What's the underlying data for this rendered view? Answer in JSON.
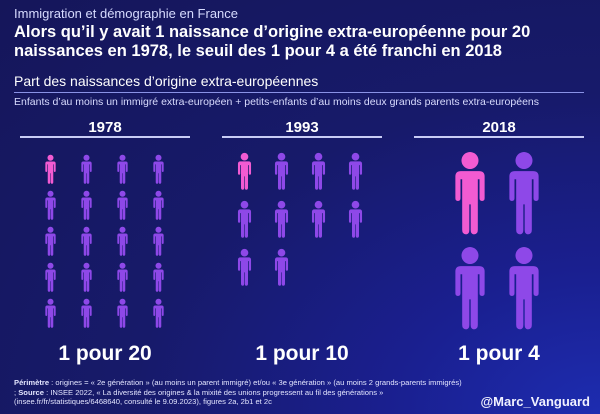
{
  "header": {
    "kicker": "Immigration et démographie en France",
    "title": "Alors qu’il y avait 1 naissance d’origine extra-européenne pour 20 naissances en 1978, le seuil des 1 pour 4 a été franchi en 2018",
    "subtitle": "Part des naissances d’origine extra-européennes",
    "caption": "Enfants d’au moins un immigré extra-européen + petits-enfants d’au moins deux grands parents extra-européens"
  },
  "chart_data": {
    "type": "pictogram",
    "categories": [
      "1978",
      "1993",
      "2018"
    ],
    "series": [
      {
        "values": [
          1,
          1,
          1
        ],
        "color": "#f25bd2"
      },
      {
        "values": [
          19,
          9,
          3
        ],
        "color": "#8e48e8"
      }
    ],
    "ratio_labels": [
      "1 pour 20",
      "1 pour 10",
      "1 pour 4"
    ]
  },
  "colors": {
    "highlight": "#f25bd2",
    "base": "#8e48e8",
    "background": "#171a6a"
  },
  "footer": {
    "perimetre_label": "Périmètre",
    "perimetre_text": " : origines = « 2e génération » (au moins un parent immigré) et/ou « 3e génération » (au moins 2 grands-parents immigrés) ; ",
    "source_label": "Source",
    "source_text": " : INSEE 2022, « La diversité des origines & la mixité des unions progressent au fil des générations » (insee.fr/fr/statistiques/6468640, consulté le 9.09.2023), figures 2a, 2b1 et 2c",
    "handle": "@Marc_Vanguard"
  }
}
